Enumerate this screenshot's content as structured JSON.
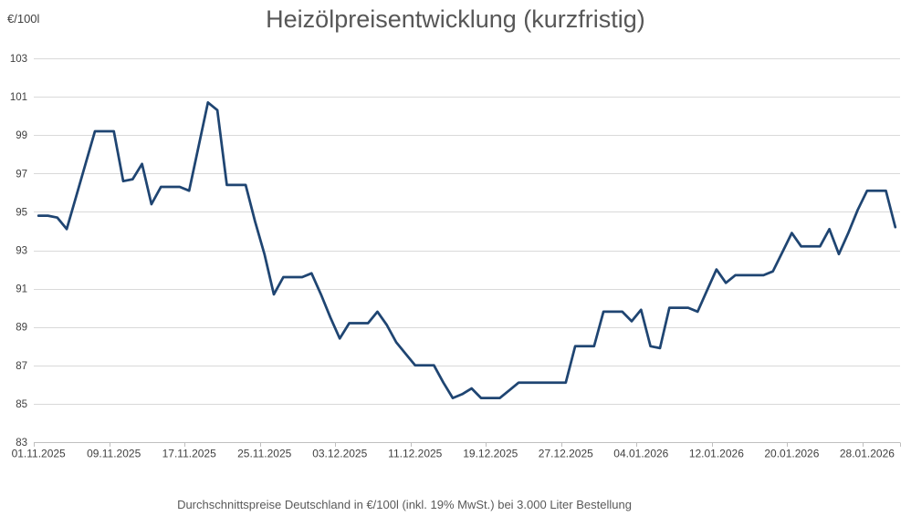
{
  "chart_data": {
    "type": "line",
    "title": "Heizölpreisentwicklung (kurzfristig)",
    "ylabel": "€/100l",
    "caption": "Durchschnittspreise Deutschland in €/100l (inkl. 19% MwSt.) bei 3.000 Liter Bestellung",
    "ylim": [
      83,
      103
    ],
    "ytick_step": 2,
    "yticks": [
      83,
      85,
      87,
      89,
      91,
      93,
      95,
      97,
      99,
      101,
      103
    ],
    "x_tick_labels": [
      "01.11.2025",
      "09.11.2025",
      "17.11.2025",
      "25.11.2025",
      "03.12.2025",
      "11.12.2025",
      "19.12.2025",
      "27.12.2025",
      "04.01.2026",
      "12.01.2026",
      "20.01.2026",
      "28.01.2026"
    ],
    "x_tick_interval_days": 8,
    "frequency": "daily",
    "grid": "horizontal-only",
    "legend": "none",
    "colors": {
      "line": "#1f4572",
      "gridline": "#d9d9d9",
      "axis_line": "#bfbfbf",
      "tick_label": "#404040",
      "title": "#575757",
      "caption": "#595959"
    },
    "points": [
      [
        "01.11.2025",
        94.8
      ],
      [
        "02.11.2025",
        94.8
      ],
      [
        "03.11.2025",
        94.7
      ],
      [
        "04.11.2025",
        94.1
      ],
      [
        "05.11.2025",
        95.8
      ],
      [
        "06.11.2025",
        97.5
      ],
      [
        "07.11.2025",
        99.2
      ],
      [
        "08.11.2025",
        99.2
      ],
      [
        "09.11.2025",
        99.2
      ],
      [
        "10.11.2025",
        96.6
      ],
      [
        "11.11.2025",
        96.7
      ],
      [
        "12.11.2025",
        97.5
      ],
      [
        "13.11.2025",
        95.4
      ],
      [
        "14.11.2025",
        96.3
      ],
      [
        "15.11.2025",
        96.3
      ],
      [
        "16.11.2025",
        96.3
      ],
      [
        "17.11.2025",
        96.1
      ],
      [
        "18.11.2025",
        98.4
      ],
      [
        "19.11.2025",
        100.7
      ],
      [
        "20.11.2025",
        100.3
      ],
      [
        "21.11.2025",
        96.4
      ],
      [
        "22.11.2025",
        96.4
      ],
      [
        "23.11.2025",
        96.4
      ],
      [
        "24.11.2025",
        94.5
      ],
      [
        "25.11.2025",
        92.8
      ],
      [
        "26.11.2025",
        90.7
      ],
      [
        "27.11.2025",
        91.6
      ],
      [
        "28.11.2025",
        91.6
      ],
      [
        "29.11.2025",
        91.6
      ],
      [
        "30.11.2025",
        91.8
      ],
      [
        "01.12.2025",
        90.7
      ],
      [
        "02.12.2025",
        89.5
      ],
      [
        "03.12.2025",
        88.4
      ],
      [
        "04.12.2025",
        89.2
      ],
      [
        "05.12.2025",
        89.2
      ],
      [
        "06.12.2025",
        89.2
      ],
      [
        "07.12.2025",
        89.8
      ],
      [
        "08.12.2025",
        89.1
      ],
      [
        "09.12.2025",
        88.2
      ],
      [
        "10.12.2025",
        87.6
      ],
      [
        "11.12.2025",
        87.0
      ],
      [
        "12.12.2025",
        87.0
      ],
      [
        "13.12.2025",
        87.0
      ],
      [
        "14.12.2025",
        86.1
      ],
      [
        "15.12.2025",
        85.3
      ],
      [
        "16.12.2025",
        85.5
      ],
      [
        "17.12.2025",
        85.8
      ],
      [
        "18.12.2025",
        85.3
      ],
      [
        "19.12.2025",
        85.3
      ],
      [
        "20.12.2025",
        85.3
      ],
      [
        "21.12.2025",
        85.7
      ],
      [
        "22.12.2025",
        86.1
      ],
      [
        "23.12.2025",
        86.1
      ],
      [
        "24.12.2025",
        86.1
      ],
      [
        "25.12.2025",
        86.1
      ],
      [
        "26.12.2025",
        86.1
      ],
      [
        "27.12.2025",
        86.1
      ],
      [
        "28.12.2025",
        88.0
      ],
      [
        "29.12.2025",
        88.0
      ],
      [
        "30.12.2025",
        88.0
      ],
      [
        "31.12.2025",
        89.8
      ],
      [
        "01.01.2026",
        89.8
      ],
      [
        "02.01.2026",
        89.8
      ],
      [
        "03.01.2026",
        89.3
      ],
      [
        "04.01.2026",
        89.9
      ],
      [
        "05.01.2026",
        88.0
      ],
      [
        "06.01.2026",
        87.9
      ],
      [
        "07.01.2026",
        90.0
      ],
      [
        "08.01.2026",
        90.0
      ],
      [
        "09.01.2026",
        90.0
      ],
      [
        "10.01.2026",
        89.8
      ],
      [
        "11.01.2026",
        90.9
      ],
      [
        "12.01.2026",
        92.0
      ],
      [
        "13.01.2026",
        91.3
      ],
      [
        "14.01.2026",
        91.7
      ],
      [
        "15.01.2026",
        91.7
      ],
      [
        "16.01.2026",
        91.7
      ],
      [
        "17.01.2026",
        91.7
      ],
      [
        "18.01.2026",
        91.9
      ],
      [
        "19.01.2026",
        92.9
      ],
      [
        "20.01.2026",
        93.9
      ],
      [
        "21.01.2026",
        93.2
      ],
      [
        "22.01.2026",
        93.2
      ],
      [
        "23.01.2026",
        93.2
      ],
      [
        "24.01.2026",
        94.1
      ],
      [
        "25.01.2026",
        92.8
      ],
      [
        "26.01.2026",
        93.9
      ],
      [
        "27.01.2026",
        95.1
      ],
      [
        "28.01.2026",
        96.1
      ],
      [
        "29.01.2026",
        96.1
      ],
      [
        "30.01.2026",
        96.1
      ],
      [
        "31.01.2026",
        94.2
      ]
    ]
  }
}
